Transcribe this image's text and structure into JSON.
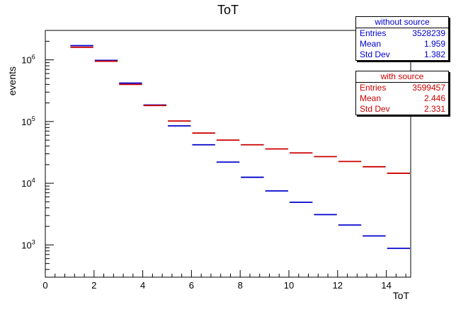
{
  "chart_data": {
    "type": "histogram",
    "title": "ToT",
    "xlabel": "ToT",
    "ylabel": "events",
    "xlim": [
      0,
      15
    ],
    "ylim": [
      300,
      3000000
    ],
    "yscale": "log",
    "x_ticks": [
      "0",
      "2",
      "4",
      "6",
      "8",
      "10",
      "12",
      "14"
    ],
    "y_ticks": [
      {
        "value": 1000,
        "base": "10",
        "exp": "3"
      },
      {
        "value": 10000,
        "base": "10",
        "exp": "4"
      },
      {
        "value": 100000,
        "base": "10",
        "exp": "5"
      },
      {
        "value": 1000000,
        "base": "10",
        "exp": "6"
      }
    ],
    "bin_edges": [
      1,
      2,
      3,
      4,
      5,
      6,
      7,
      8,
      9,
      10,
      11,
      12,
      13,
      14,
      15
    ],
    "series": [
      {
        "color": "#0000cc",
        "values": [
          1700000,
          980000,
          420000,
          185000,
          85000,
          42000,
          22000,
          12500,
          7500,
          4900,
          3100,
          2100,
          1400,
          880
        ]
      },
      {
        "color": "#cc0000",
        "values": [
          1600000,
          950000,
          400000,
          182000,
          102000,
          65000,
          50000,
          42000,
          36000,
          31000,
          27000,
          22500,
          18500,
          14500
        ]
      }
    ],
    "legend_position": "top-right"
  },
  "stats_blue": {
    "title": "without source",
    "entries_label": "Entries",
    "entries_value": "3528239",
    "mean_label": "Mean",
    "mean_value": "1.959",
    "std_label": "Std Dev",
    "std_value": "1.382"
  },
  "stats_red": {
    "title": "with   source",
    "entries_label": "Entries",
    "entries_value": "3599457",
    "mean_label": "Mean",
    "mean_value": "2.446",
    "std_label": "Std Dev",
    "std_value": "2.331"
  }
}
